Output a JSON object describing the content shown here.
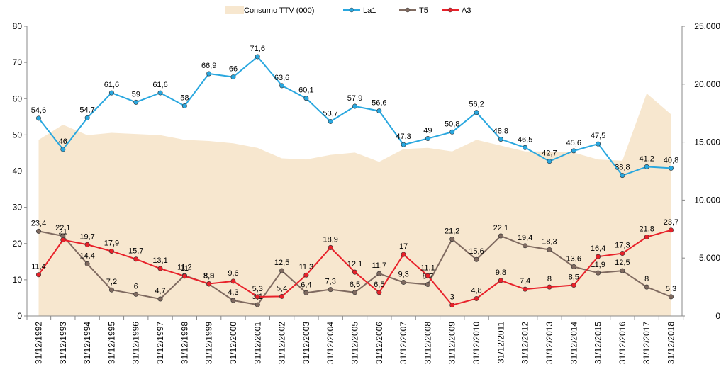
{
  "chart_data": {
    "type": "line",
    "title": "",
    "xlabel": "",
    "ylabel": "",
    "x": [
      "31/12/1992",
      "31/12/1993",
      "31/12/1994",
      "31/12/1995",
      "31/12/1996",
      "31/12/1997",
      "31/12/1998",
      "31/12/1999",
      "31/12/2000",
      "31/12/2001",
      "31/12/2002",
      "31/12/2003",
      "31/12/2004",
      "31/12/2005",
      "31/12/2006",
      "31/12/2007",
      "31/12/2008",
      "31/12/2009",
      "31/12/2010",
      "31/12/2011",
      "31/12/2012",
      "31/12/2013",
      "31/12/2014",
      "31/12/2015",
      "31/12/2016",
      "31/12/2017",
      "31/12/2018"
    ],
    "ylim": [
      0,
      80
    ],
    "yticks": [
      "0",
      "10",
      "20",
      "30",
      "40",
      "50",
      "60",
      "70",
      "80"
    ],
    "y2lim": [
      0,
      25000
    ],
    "y2ticks": [
      "0",
      "5.000",
      "10.000",
      "15.000",
      "20.000",
      "25.000"
    ],
    "legend_position": "top",
    "grid": false,
    "series": [
      {
        "name": "Consumo TTV (000)",
        "type": "area",
        "axis": "right",
        "color": "#f7e7cf",
        "values": [
          15200,
          16500,
          15600,
          15800,
          15700,
          15600,
          15200,
          15100,
          14900,
          14500,
          13600,
          13500,
          13900,
          14100,
          13300,
          14400,
          14500,
          14200,
          15200,
          14700,
          14200,
          14200,
          14100,
          13500,
          13400,
          19200,
          17400
        ]
      },
      {
        "name": "La1",
        "type": "line",
        "axis": "left",
        "color": "#29a7df",
        "values": [
          54.6,
          46,
          54.7,
          61.6,
          59,
          61.6,
          58,
          66.9,
          66,
          71.6,
          63.6,
          60.1,
          53.7,
          57.9,
          56.6,
          47.3,
          49,
          50.8,
          56.2,
          48.8,
          46.5,
          42.7,
          45.6,
          47.5,
          38.8,
          41.2,
          40.8
        ],
        "labels": [
          "54,6",
          "46",
          "54,7",
          "61,6",
          "59",
          "61,6",
          "58",
          "66,9",
          "66",
          "71,6",
          "63,6",
          "60,1",
          "53,7",
          "57,9",
          "56,6",
          "47,3",
          "49",
          "50,8",
          "56,2",
          "48,8",
          "46,5",
          "42,7",
          "45,6",
          "47,5",
          "38,8",
          "41,2",
          "40,8"
        ]
      },
      {
        "name": "T5",
        "type": "line",
        "axis": "left",
        "color": "#7f6a60",
        "values": [
          23.4,
          22.1,
          14.4,
          7.2,
          6,
          4.7,
          11.2,
          8.8,
          4.3,
          3.1,
          12.5,
          6.4,
          7.3,
          6.5,
          11.7,
          9.3,
          8.7,
          21.2,
          15.6,
          22.1,
          19.4,
          18.3,
          13.6,
          11.9,
          12.5,
          8,
          5.3
        ],
        "labels": [
          "23,4",
          "22,1",
          "14,4",
          "7,2",
          "6",
          "4,7",
          "11,2",
          "8,8",
          "4,3",
          "3,1",
          "12,5",
          "6,4",
          "7,3",
          "6,5",
          "11,7",
          "9,3",
          "8,7",
          "21,2",
          "15,6",
          "22,1",
          "19,4",
          "18,3",
          "13,6",
          "11,9",
          "12,5",
          "8",
          "5,3"
        ]
      },
      {
        "name": "A3",
        "type": "line",
        "axis": "left",
        "color": "#e8212a",
        "values": [
          11.4,
          21,
          19.7,
          17.9,
          15.7,
          13.1,
          11,
          8.9,
          9.6,
          5.3,
          5.4,
          11.3,
          18.9,
          12.1,
          6.5,
          17,
          11.1,
          3,
          4.8,
          9.8,
          7.4,
          8,
          8.5,
          16.4,
          17.3,
          21.8,
          23.7
        ],
        "labels": [
          "11,4",
          "21",
          "19,7",
          "17,9",
          "15,7",
          "13,1",
          "11",
          "8,9",
          "9,6",
          "5,3",
          "5,4",
          "11,3",
          "18,9",
          "12,1",
          "6,5",
          "17",
          "11,1",
          "3",
          "4,8",
          "9,8",
          "7,4",
          "8",
          "8,5",
          "16,4",
          "17,3",
          "21,8",
          "23,7"
        ]
      }
    ]
  }
}
